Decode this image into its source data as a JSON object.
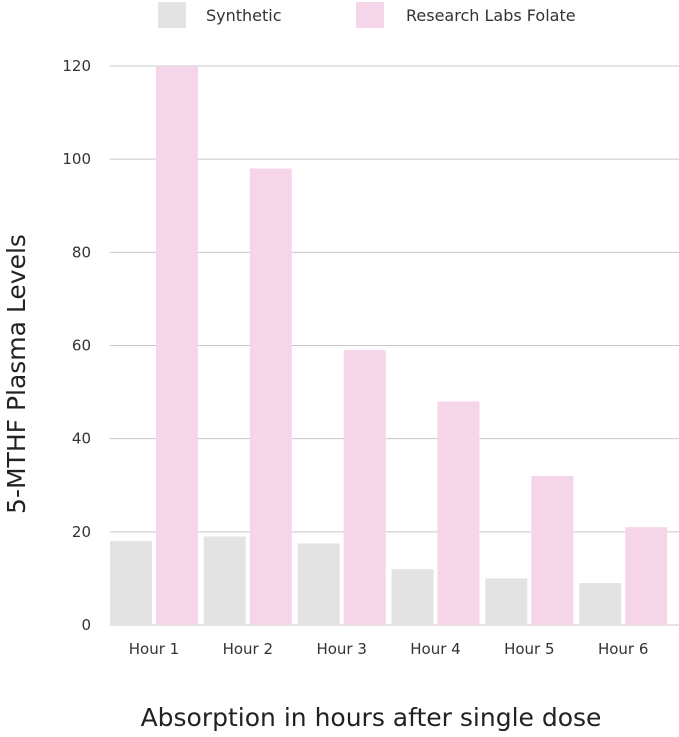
{
  "chart_data": {
    "type": "bar",
    "categories": [
      "Hour 1",
      "Hour 2",
      "Hour 3",
      "Hour 4",
      "Hour 5",
      "Hour 6"
    ],
    "series": [
      {
        "name": "Synthetic",
        "color": "#e3e3e3",
        "values": [
          18,
          19,
          17.5,
          12,
          10,
          9
        ]
      },
      {
        "name": "Research Labs Folate",
        "color": "#f5d6e8",
        "values": [
          120,
          98,
          59,
          48,
          32,
          21
        ]
      }
    ],
    "title": "",
    "xlabel": "Absorption in hours after single dose",
    "ylabel": "5-MTHF Plasma Levels",
    "ylim": [
      0,
      120
    ],
    "yticks": [
      0,
      20,
      40,
      60,
      80,
      100,
      120
    ],
    "grid": true,
    "legend_position": "top"
  }
}
